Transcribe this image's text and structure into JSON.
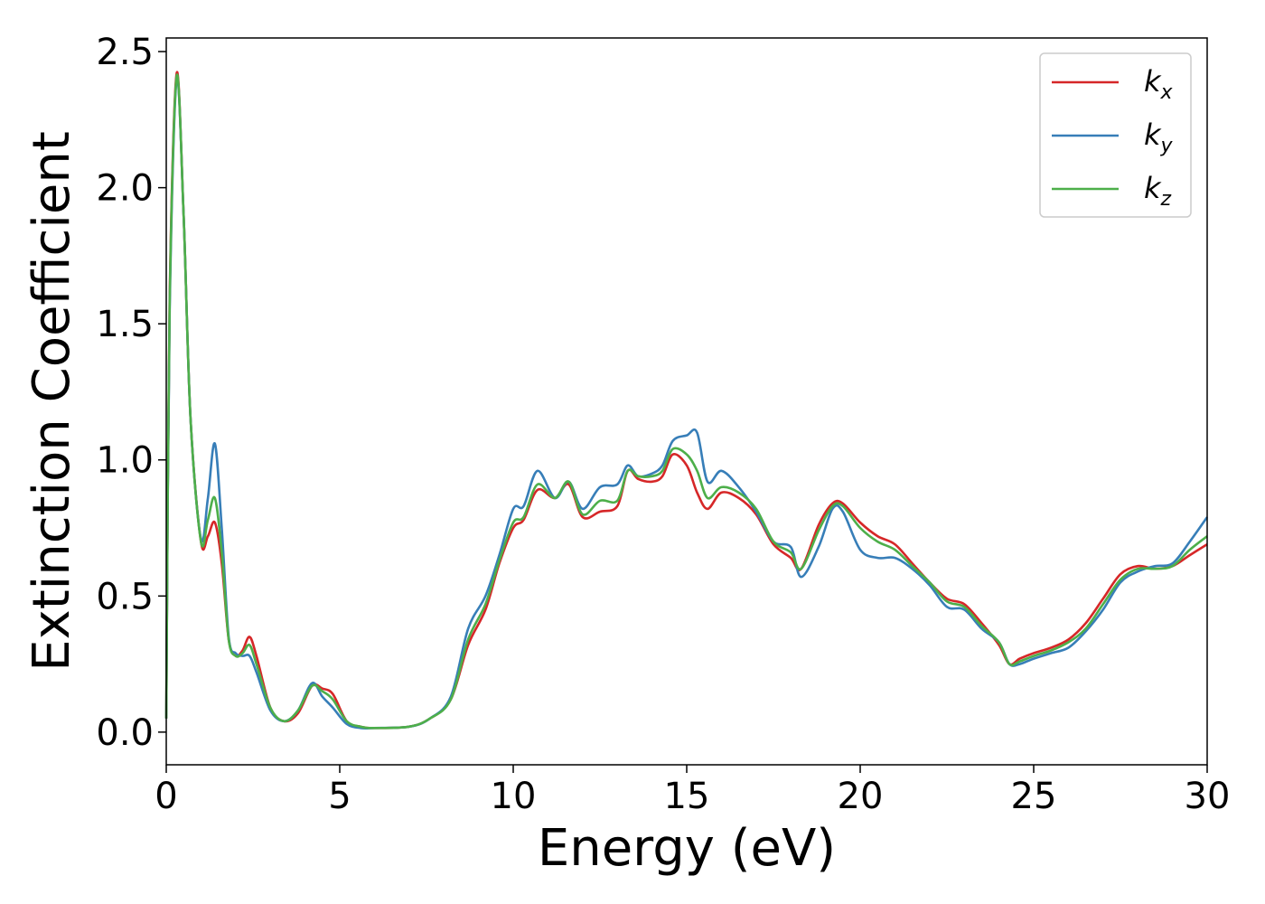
{
  "chart_data": {
    "type": "line",
    "title": "",
    "xlabel": "Energy (eV)",
    "ylabel": "Extinction Coefficient",
    "xlim": [
      0,
      30
    ],
    "ylim": [
      -0.12,
      2.55
    ],
    "xticks": [
      0,
      5,
      10,
      15,
      20,
      25,
      30
    ],
    "xtick_labels": [
      "0",
      "5",
      "10",
      "15",
      "20",
      "25",
      "30"
    ],
    "yticks": [
      0.0,
      0.5,
      1.0,
      1.5,
      2.0,
      2.5
    ],
    "ytick_labels": [
      "0.0",
      "0.5",
      "1.0",
      "1.5",
      "2.0",
      "2.5"
    ],
    "grid": false,
    "legend_position": "top-right",
    "series": [
      {
        "name": "k",
        "name_sub": "x",
        "color": "#d62728",
        "x": [
          0,
          0.1,
          0.3,
          0.5,
          0.7,
          1.0,
          1.2,
          1.4,
          1.6,
          1.8,
          2.0,
          2.2,
          2.4,
          2.6,
          3.0,
          3.4,
          3.8,
          4.2,
          4.5,
          4.8,
          5.2,
          5.6,
          6.0,
          7.0,
          7.6,
          8.2,
          8.7,
          9.2,
          9.6,
          10.0,
          10.3,
          10.7,
          11.2,
          11.6,
          12.0,
          12.5,
          13.0,
          13.3,
          13.6,
          14.0,
          14.3,
          14.6,
          15.0,
          15.3,
          15.6,
          16.0,
          16.5,
          17.0,
          17.5,
          18.0,
          18.3,
          18.8,
          19.2,
          19.5,
          20.0,
          20.5,
          21.0,
          21.5,
          22.0,
          22.5,
          23.0,
          23.5,
          24.0,
          24.3,
          24.6,
          25.0,
          25.5,
          26.0,
          26.5,
          27.0,
          27.5,
          28.0,
          28.5,
          29.0,
          29.5,
          30.0
        ],
        "values": [
          0.05,
          1.6,
          2.42,
          1.9,
          1.15,
          0.7,
          0.72,
          0.77,
          0.62,
          0.34,
          0.28,
          0.3,
          0.35,
          0.28,
          0.09,
          0.04,
          0.07,
          0.17,
          0.16,
          0.14,
          0.04,
          0.02,
          0.015,
          0.02,
          0.05,
          0.12,
          0.32,
          0.45,
          0.62,
          0.75,
          0.78,
          0.89,
          0.86,
          0.91,
          0.79,
          0.81,
          0.83,
          0.96,
          0.93,
          0.92,
          0.94,
          1.02,
          0.98,
          0.88,
          0.82,
          0.88,
          0.86,
          0.8,
          0.69,
          0.64,
          0.6,
          0.76,
          0.84,
          0.84,
          0.77,
          0.72,
          0.69,
          0.62,
          0.55,
          0.49,
          0.47,
          0.4,
          0.32,
          0.25,
          0.27,
          0.29,
          0.31,
          0.34,
          0.4,
          0.49,
          0.58,
          0.61,
          0.6,
          0.61,
          0.65,
          0.69
        ]
      },
      {
        "name": "k",
        "name_sub": "y",
        "color": "#377eb8",
        "x": [
          0,
          0.1,
          0.3,
          0.5,
          0.7,
          1.0,
          1.2,
          1.4,
          1.6,
          1.8,
          2.0,
          2.2,
          2.4,
          2.6,
          3.0,
          3.4,
          3.8,
          4.2,
          4.5,
          4.8,
          5.2,
          5.6,
          6.0,
          7.0,
          7.6,
          8.2,
          8.7,
          9.2,
          9.6,
          10.0,
          10.3,
          10.7,
          11.2,
          11.6,
          12.0,
          12.5,
          13.0,
          13.3,
          13.6,
          14.0,
          14.3,
          14.6,
          15.0,
          15.3,
          15.6,
          16.0,
          16.5,
          17.0,
          17.5,
          18.0,
          18.3,
          18.8,
          19.2,
          19.5,
          20.0,
          20.5,
          21.0,
          21.5,
          22.0,
          22.5,
          23.0,
          23.5,
          24.0,
          24.3,
          24.6,
          25.0,
          25.5,
          26.0,
          26.5,
          27.0,
          27.5,
          28.0,
          28.5,
          29.0,
          29.5,
          30.0
        ],
        "values": [
          0.05,
          1.55,
          2.4,
          1.9,
          1.15,
          0.71,
          0.86,
          1.06,
          0.75,
          0.35,
          0.29,
          0.28,
          0.28,
          0.22,
          0.08,
          0.04,
          0.08,
          0.18,
          0.13,
          0.09,
          0.03,
          0.015,
          0.015,
          0.02,
          0.05,
          0.13,
          0.38,
          0.5,
          0.65,
          0.82,
          0.83,
          0.96,
          0.86,
          0.92,
          0.82,
          0.9,
          0.91,
          0.98,
          0.94,
          0.95,
          0.98,
          1.07,
          1.09,
          1.1,
          0.92,
          0.96,
          0.9,
          0.81,
          0.7,
          0.68,
          0.57,
          0.68,
          0.82,
          0.81,
          0.67,
          0.64,
          0.64,
          0.6,
          0.54,
          0.46,
          0.45,
          0.38,
          0.33,
          0.25,
          0.25,
          0.27,
          0.29,
          0.31,
          0.37,
          0.45,
          0.55,
          0.59,
          0.61,
          0.62,
          0.7,
          0.79
        ]
      },
      {
        "name": "k",
        "name_sub": "z",
        "color": "#4daf4a",
        "x": [
          0,
          0.1,
          0.3,
          0.5,
          0.7,
          1.0,
          1.2,
          1.4,
          1.6,
          1.8,
          2.0,
          2.2,
          2.4,
          2.6,
          3.0,
          3.4,
          3.8,
          4.2,
          4.5,
          4.8,
          5.2,
          5.6,
          6.0,
          7.0,
          7.6,
          8.2,
          8.7,
          9.2,
          9.6,
          10.0,
          10.3,
          10.7,
          11.2,
          11.6,
          12.0,
          12.5,
          13.0,
          13.3,
          13.6,
          14.0,
          14.3,
          14.6,
          15.0,
          15.3,
          15.6,
          16.0,
          16.5,
          17.0,
          17.5,
          18.0,
          18.3,
          18.8,
          19.2,
          19.5,
          20.0,
          20.5,
          21.0,
          21.5,
          22.0,
          22.5,
          23.0,
          23.5,
          24.0,
          24.3,
          24.6,
          25.0,
          25.5,
          26.0,
          26.5,
          27.0,
          27.5,
          28.0,
          28.5,
          29.0,
          29.5,
          30.0
        ],
        "values": [
          0.05,
          1.58,
          2.41,
          1.9,
          1.15,
          0.7,
          0.78,
          0.86,
          0.66,
          0.34,
          0.28,
          0.29,
          0.32,
          0.25,
          0.09,
          0.04,
          0.08,
          0.17,
          0.15,
          0.12,
          0.04,
          0.02,
          0.015,
          0.02,
          0.05,
          0.12,
          0.34,
          0.47,
          0.63,
          0.77,
          0.79,
          0.91,
          0.86,
          0.92,
          0.8,
          0.85,
          0.85,
          0.96,
          0.94,
          0.94,
          0.96,
          1.04,
          1.02,
          0.96,
          0.86,
          0.9,
          0.88,
          0.82,
          0.7,
          0.66,
          0.6,
          0.74,
          0.83,
          0.83,
          0.75,
          0.7,
          0.67,
          0.61,
          0.55,
          0.48,
          0.46,
          0.39,
          0.33,
          0.25,
          0.26,
          0.28,
          0.3,
          0.33,
          0.38,
          0.47,
          0.56,
          0.6,
          0.6,
          0.61,
          0.67,
          0.72
        ]
      }
    ]
  }
}
